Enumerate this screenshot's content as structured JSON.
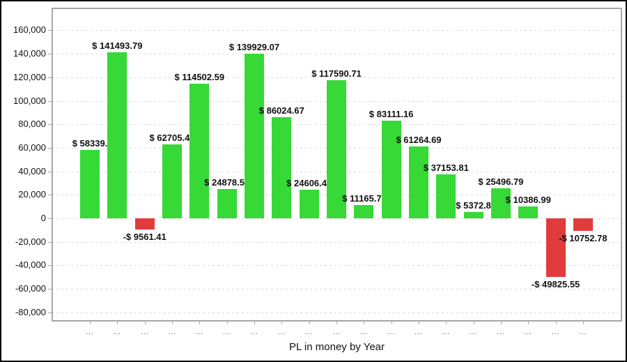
{
  "chart_data": {
    "type": "bar",
    "title": "",
    "xlabel": "PL in money by Year",
    "ylabel": "",
    "ylim": [
      -88000,
      179000
    ],
    "grid": "dashed-horizontal",
    "legend": "none",
    "x_tick_label": "...",
    "yticks": {
      "values": [
        160000,
        140000,
        120000,
        100000,
        80000,
        60000,
        40000,
        20000,
        0,
        -20000,
        -40000,
        -60000,
        -80000
      ],
      "labels": [
        "160,000",
        "140,000",
        "120,000",
        "100,000",
        "80,000",
        "60,000",
        "40,000",
        "20,000",
        "0",
        "-20,000",
        "-40,000",
        "-60,000",
        "-80,000"
      ]
    },
    "colors": {
      "positive": "#36d936",
      "negative": "#e23b3b",
      "grid": "#d9d9d9",
      "axis": "#a6a6a6",
      "text": "#111111"
    },
    "bars": [
      {
        "value": 58339,
        "label": "$ 58339.",
        "label_truncated": true
      },
      {
        "value": 141493.79,
        "label": "$ 141493.79"
      },
      {
        "value": -9561.41,
        "label": "-$ 9561.41"
      },
      {
        "value": 62705.4,
        "label": "$ 62705.4",
        "label_truncated": true
      },
      {
        "value": 114502.59,
        "label": "$ 114502.59"
      },
      {
        "value": 24878.5,
        "label": "$ 24878.5",
        "label_truncated": true
      },
      {
        "value": 139929.07,
        "label": "$ 139929.07"
      },
      {
        "value": 86024.67,
        "label": "$ 86024.67"
      },
      {
        "value": 24606.4,
        "label": "$ 24606.4",
        "label_truncated": true
      },
      {
        "value": 117590.71,
        "label": "$ 117590.71"
      },
      {
        "value": 11165.7,
        "label": "$ 11165.7",
        "label_truncated": true
      },
      {
        "value": 83111.16,
        "label": "$ 83111.16"
      },
      {
        "value": 61264.69,
        "label": "$ 61264.69"
      },
      {
        "value": 37153.81,
        "label": "$ 37153.81"
      },
      {
        "value": 5372.8,
        "label": "$ 5372.8",
        "label_truncated": true
      },
      {
        "value": 25496.79,
        "label": "$ 25496.79"
      },
      {
        "value": 10386.99,
        "label": "$ 10386.99"
      },
      {
        "value": -49825.55,
        "label": "-$ 49825.55"
      },
      {
        "value": -10752.78,
        "label": "-$ 10752.78"
      }
    ]
  }
}
